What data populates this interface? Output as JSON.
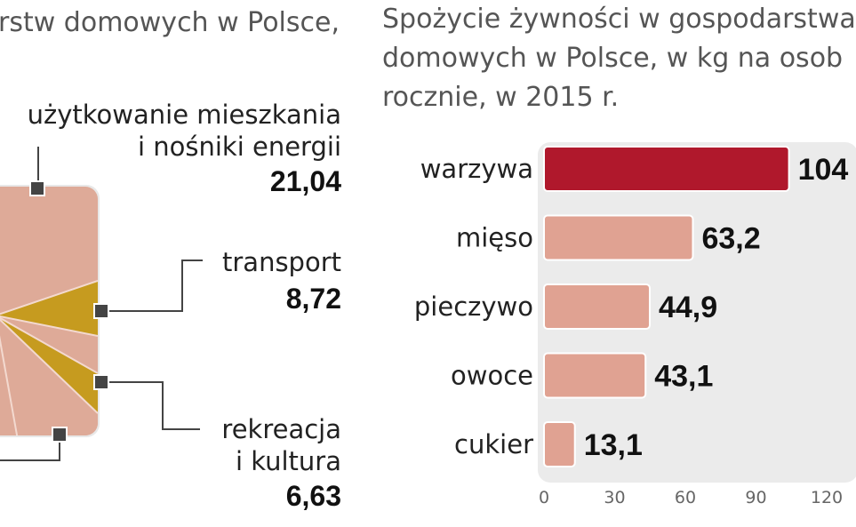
{
  "left": {
    "title_fragment": "rstw domowych w Polsce,",
    "callouts": [
      {
        "label_line1": "użytkowanie mieszkania",
        "label_line2": "i nośniki energii",
        "value": "21,04"
      },
      {
        "label_line1": "transport",
        "label_line2": "",
        "value": "8,72"
      },
      {
        "label_line1": "rekreacja",
        "label_line2": "i kultura",
        "value": "6,63"
      }
    ]
  },
  "chart_data": {
    "type": "bar",
    "orientation": "horizontal",
    "title_line1": "Spożycie żywności w gospodarstwa",
    "title_line2": "domowych w Polsce, w kg na osob",
    "title_line3": "rocznie, w 2015 r.",
    "categories": [
      "warzywa",
      "mięso",
      "pieczywo",
      "owoce",
      "cukier"
    ],
    "values": [
      104,
      63.2,
      44.9,
      43.1,
      13.1
    ],
    "value_labels": [
      "104",
      "63,2",
      "44,9",
      "43,1",
      "13,1"
    ],
    "xlim": [
      0,
      120
    ],
    "ticks": [
      "0",
      "30",
      "60",
      "90",
      "120"
    ],
    "grid": false,
    "colors": {
      "highlight": "#b0182c",
      "bar": "#e0a292",
      "bar_border": "#d4d4d4"
    }
  }
}
